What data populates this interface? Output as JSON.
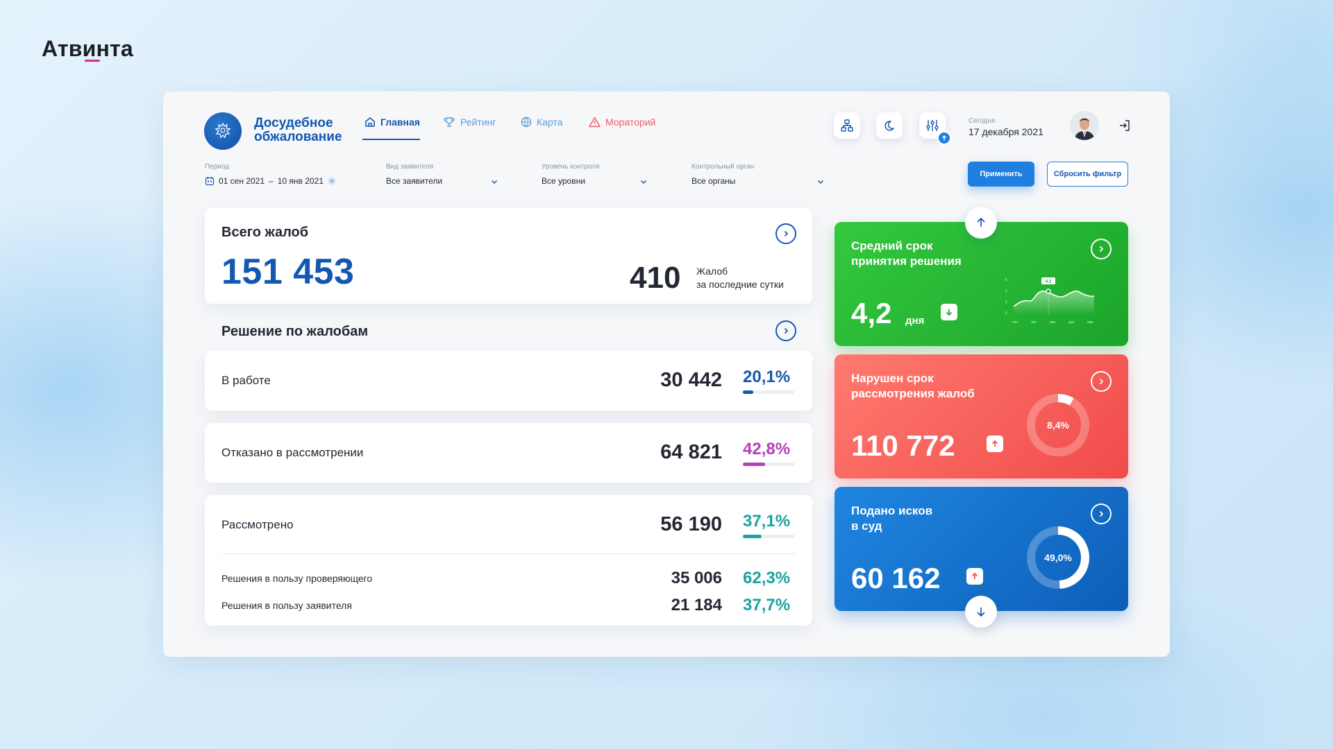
{
  "brand": {
    "name": "Атвинта"
  },
  "header": {
    "app_title_line1": "Досудебное",
    "app_title_line2": "обжалование",
    "nav": [
      {
        "label": "Главная",
        "icon": "home-icon"
      },
      {
        "label": "Рейтинг",
        "icon": "trophy-icon"
      },
      {
        "label": "Карта",
        "icon": "globe-icon"
      },
      {
        "label": "Мораторий",
        "icon": "warning-icon"
      }
    ],
    "today_label": "Сегодня",
    "today_date": "17 декабря 2021"
  },
  "filters": {
    "period": {
      "label": "Период",
      "from": "01 сен 2021",
      "dash": "–",
      "to": "10 янв 2021"
    },
    "applicant": {
      "label": "Вид заявителя",
      "value": "Все заявители"
    },
    "level": {
      "label": "Уровень контроля",
      "value": "Все уровни"
    },
    "authority": {
      "label": "Контрольный орган",
      "value": "Все органы"
    },
    "apply_label": "Применить",
    "reset_label": "Сбросить фильтр"
  },
  "totals": {
    "title": "Всего жалоб",
    "value": "151 453",
    "day_value": "410",
    "day_label_line1": "Жалоб",
    "day_label_line2": "за последние сутки"
  },
  "decisions": {
    "title": "Решение по жалобам",
    "rows": [
      {
        "label": "В работе",
        "value": "30 442",
        "pct": "20,1%",
        "fraction": 0.201,
        "color": "#1358b0"
      },
      {
        "label": "Отказано в рассмотрении",
        "value": "64 821",
        "pct": "42,8%",
        "fraction": 0.428,
        "color": "#b540b5"
      },
      {
        "label": "Рассмотрено",
        "value": "56 190",
        "pct": "37,1%",
        "fraction": 0.371,
        "color": "#1aa3a0"
      }
    ],
    "sub_rows": [
      {
        "label": "Решения в пользу проверяющего",
        "value": "35 006",
        "pct": "62,3%"
      },
      {
        "label": "Решения в пользу заявителя",
        "value": "21 184",
        "pct": "37,7%"
      }
    ]
  },
  "kpi": {
    "avg_term": {
      "title_line1": "Средний срок",
      "title_line2": "принятия решения",
      "value": "4,2",
      "unit": "дня",
      "trend": "down",
      "color": "#22b02f",
      "chart": {
        "months": [
          "сен",
          "окт",
          "ноя",
          "дек",
          "янв"
        ],
        "y_ticks": [
          "6",
          "4",
          "2",
          "0"
        ],
        "highlight_label": "4.2"
      }
    },
    "violated": {
      "title_line1": "Нарушен срок",
      "title_line2": "рассмотрения жалоб",
      "value": "110 772",
      "pct": "8,4%",
      "fraction": 0.084,
      "trend": "up",
      "color": "#f25454"
    },
    "lawsuits": {
      "title_line1": "Подано исков",
      "title_line2": "в суд",
      "value": "60 162",
      "pct": "49,0%",
      "fraction": 0.49,
      "trend": "up",
      "color": "#1068c9"
    }
  }
}
